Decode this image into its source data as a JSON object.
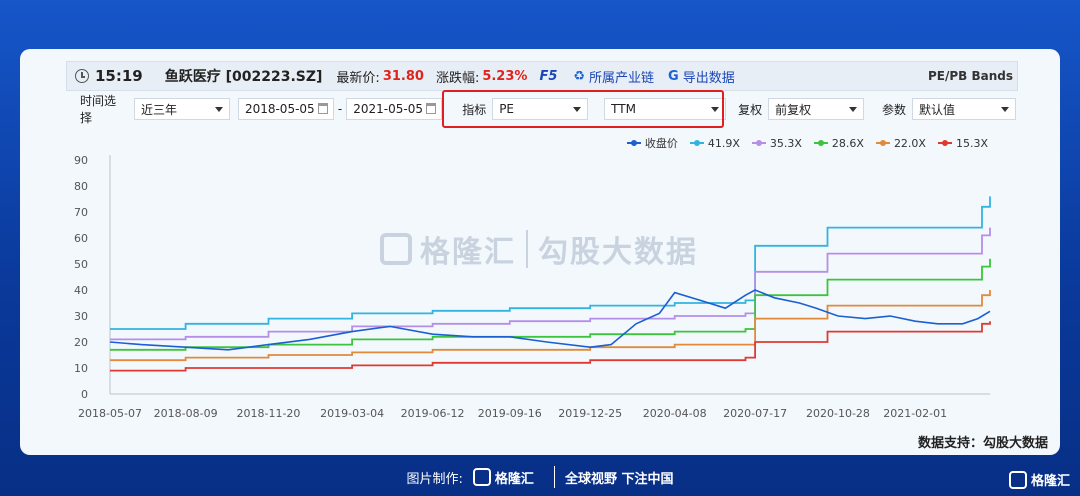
{
  "header": {
    "time": "15:19",
    "stock": "鱼跃医疗 [002223.SZ]",
    "last_price_label": "最新价:",
    "last_price": "31.80",
    "change_label": "涨跌幅:",
    "change": "5.23%",
    "f5": "F5",
    "industry_chain": "所属产业链",
    "export": "导出数据",
    "bands_title": "PE/PB Bands"
  },
  "filters": {
    "time_label": "时间选择",
    "time_value": "近三年",
    "start_date": "2018-05-05",
    "dash": "-",
    "end_date": "2021-05-05",
    "indicator_label": "指标",
    "indicator_value": "PE",
    "ttm_value": "TTM",
    "adjust_label": "复权",
    "adjust_value": "前复权",
    "param_label": "参数",
    "param_value": "默认值"
  },
  "watermark": {
    "brand": "格隆汇",
    "text": "勾股大数据"
  },
  "support": "数据支持：勾股大数据",
  "footer": {
    "made_by": "图片制作:",
    "brand": "格隆汇",
    "slogan": "全球视野 下注中国"
  },
  "corner_brand": "格隆汇",
  "colors": {
    "close": "#1b5fd1",
    "b419": "#32b4e0",
    "b353": "#b58ee8",
    "b286": "#3cc43c",
    "b220": "#e08a3a",
    "b153": "#e03a30"
  },
  "chart_data": {
    "type": "line",
    "x_ticks": [
      "2018-05-07",
      "2018-08-09",
      "2018-11-20",
      "2019-03-04",
      "2019-06-12",
      "2019-09-16",
      "2019-12-25",
      "2020-04-08",
      "2020-07-17",
      "2020-10-28",
      "2021-02-01"
    ],
    "ylim": [
      0,
      90
    ],
    "y_ticks": [
      0,
      10,
      20,
      30,
      40,
      50,
      60,
      70,
      80,
      90
    ],
    "legend_position": "top-right",
    "grid": false,
    "series": [
      {
        "name": "收盘价",
        "color_key": "close",
        "dates": [
          "2018-05-07",
          "2018-06-15",
          "2018-08-09",
          "2018-10-01",
          "2018-11-20",
          "2019-01-10",
          "2019-03-04",
          "2019-04-20",
          "2019-06-12",
          "2019-08-01",
          "2019-09-16",
          "2019-11-01",
          "2019-12-25",
          "2020-01-20",
          "2020-02-20",
          "2020-03-20",
          "2020-04-08",
          "2020-05-10",
          "2020-06-10",
          "2020-07-05",
          "2020-07-17",
          "2020-08-10",
          "2020-09-10",
          "2020-10-01",
          "2020-10-28",
          "2020-12-01",
          "2021-01-01",
          "2021-02-01",
          "2021-03-01",
          "2021-04-01",
          "2021-04-20",
          "2021-05-05"
        ],
        "values": [
          20,
          19,
          18,
          17,
          19,
          21,
          24,
          26,
          23,
          22,
          22,
          20,
          18,
          19,
          27,
          31,
          39,
          36,
          33,
          38,
          40,
          37,
          35,
          33,
          30,
          29,
          30,
          28,
          27,
          27,
          29,
          31.8
        ]
      },
      {
        "name": "41.9X",
        "color_key": "b419",
        "dates": [
          "2018-05-07",
          "2018-08-09",
          "2018-11-20",
          "2019-03-04",
          "2019-06-12",
          "2019-09-16",
          "2019-12-25",
          "2020-04-08",
          "2020-07-05",
          "2020-07-17",
          "2020-10-15",
          "2021-04-10",
          "2021-04-25",
          "2021-05-05"
        ],
        "values": [
          25,
          27,
          29,
          31,
          32,
          33,
          34,
          35,
          36,
          57,
          64,
          64,
          72,
          76
        ]
      },
      {
        "name": "35.3X",
        "color_key": "b353",
        "dates": [
          "2018-05-07",
          "2018-08-09",
          "2018-11-20",
          "2019-03-04",
          "2019-06-12",
          "2019-09-16",
          "2019-12-25",
          "2020-04-08",
          "2020-07-05",
          "2020-07-17",
          "2020-10-15",
          "2021-04-10",
          "2021-04-25",
          "2021-05-05"
        ],
        "values": [
          21,
          22,
          24,
          26,
          27,
          28,
          29,
          30,
          31,
          47,
          54,
          54,
          61,
          64
        ]
      },
      {
        "name": "28.6X",
        "color_key": "b286",
        "dates": [
          "2018-05-07",
          "2018-08-09",
          "2018-11-20",
          "2019-03-04",
          "2019-06-12",
          "2019-09-16",
          "2019-12-25",
          "2020-04-08",
          "2020-07-05",
          "2020-07-17",
          "2020-10-15",
          "2021-04-10",
          "2021-04-25",
          "2021-05-05"
        ],
        "values": [
          17,
          18,
          19,
          21,
          22,
          22,
          23,
          24,
          25,
          38,
          44,
          44,
          49,
          52
        ]
      },
      {
        "name": "22.0X",
        "color_key": "b220",
        "dates": [
          "2018-05-07",
          "2018-08-09",
          "2018-11-20",
          "2019-03-04",
          "2019-06-12",
          "2019-09-16",
          "2019-12-25",
          "2020-04-08",
          "2020-07-05",
          "2020-07-17",
          "2020-10-15",
          "2021-04-10",
          "2021-04-25",
          "2021-05-05"
        ],
        "values": [
          13,
          14,
          15,
          16,
          17,
          17,
          18,
          19,
          19,
          29,
          34,
          34,
          38,
          40
        ]
      },
      {
        "name": "15.3X",
        "color_key": "b153",
        "dates": [
          "2018-05-07",
          "2018-08-09",
          "2018-11-20",
          "2019-03-04",
          "2019-06-12",
          "2019-09-16",
          "2019-12-25",
          "2020-04-08",
          "2020-07-05",
          "2020-07-17",
          "2020-10-15",
          "2021-04-10",
          "2021-04-25",
          "2021-05-05"
        ],
        "values": [
          9,
          10,
          10,
          11,
          12,
          12,
          13,
          13,
          14,
          20,
          24,
          24,
          27,
          28
        ]
      }
    ]
  }
}
